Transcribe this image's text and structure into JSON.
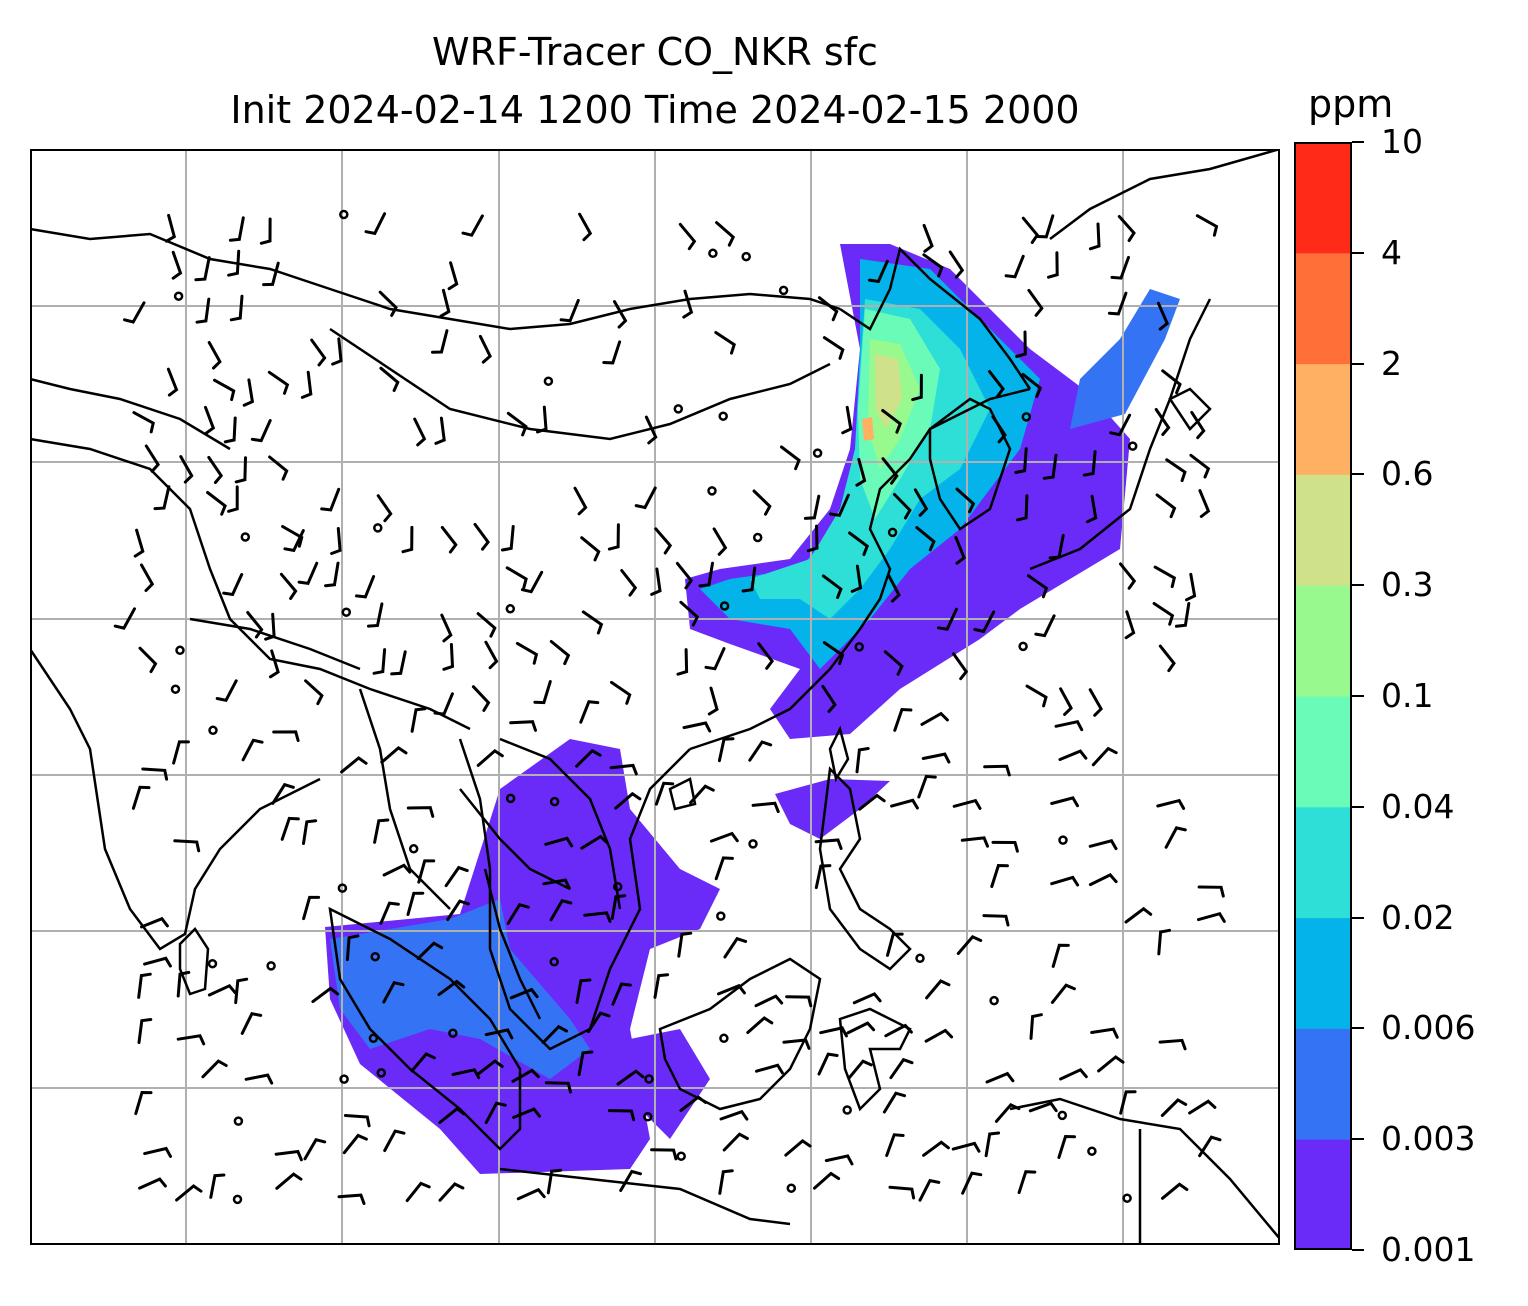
{
  "figure": {
    "title_line1": "WRF-Tracer CO_NKR sfc",
    "title_line2": "Init 2024-02-14 1200 Time 2024-02-15 2000"
  },
  "colorbar": {
    "unit": "ppm",
    "ticks": [
      "0.001",
      "0.003",
      "0.006",
      "0.02",
      "0.04",
      "0.1",
      "0.3",
      "0.6",
      "2",
      "4",
      "10"
    ],
    "colors": [
      "#6a2bf8",
      "#3473f4",
      "#03b3ea",
      "#2edfd7",
      "#6bfbb9",
      "#98f98f",
      "#cfe28a",
      "#ffb062",
      "#ff7039",
      "#ff2a18"
    ]
  },
  "map": {
    "tracer": "CO_NKR",
    "level": "sfc",
    "gridlines": true,
    "overlays": [
      "coastlines",
      "country-borders",
      "wind-barbs",
      "concentration-fill"
    ]
  }
}
